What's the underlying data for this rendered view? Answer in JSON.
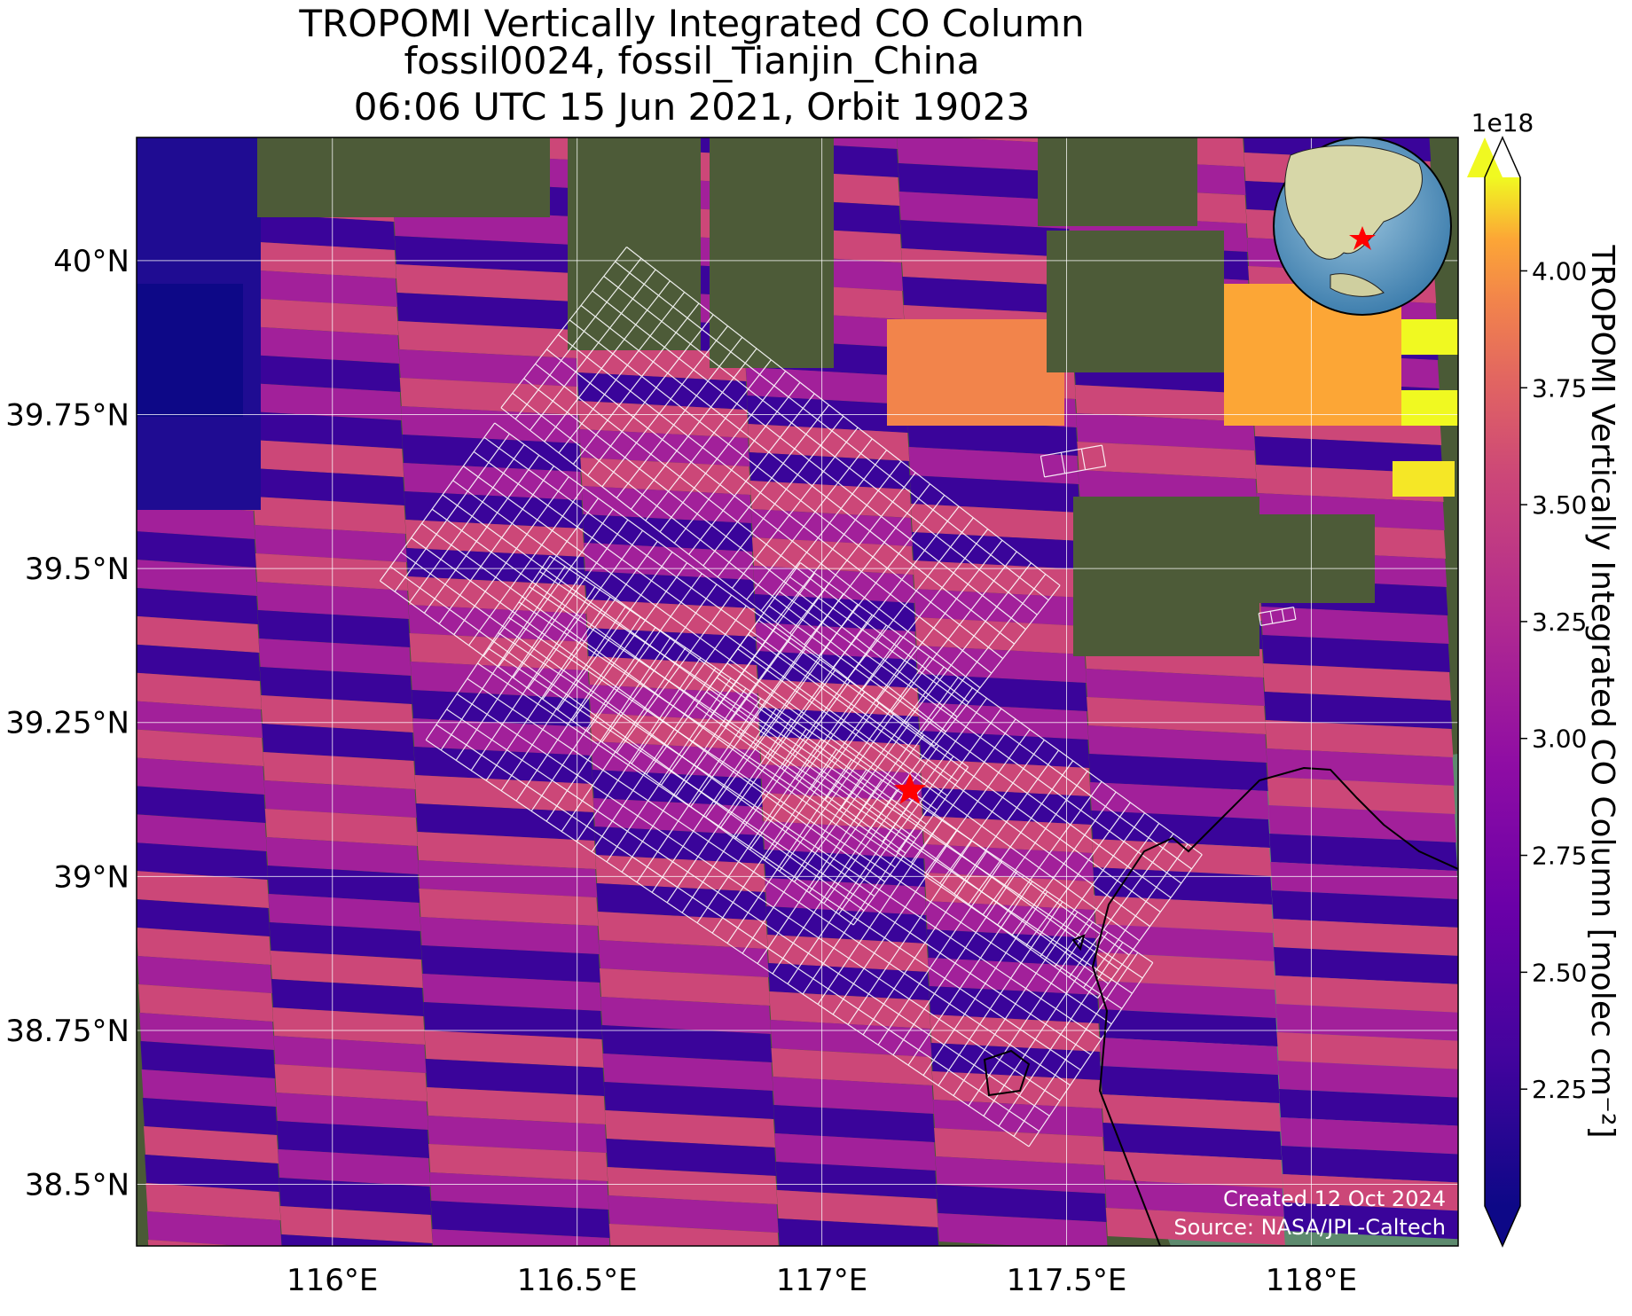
{
  "title": {
    "line1": "TROPOMI Vertically Integrated CO Column",
    "line2": "fossil0024, fossil_Tianjin_China",
    "line3": "06:06 UTC 15 Jun 2021, Orbit 19023"
  },
  "map": {
    "lon_range": [
      115.6,
      118.3
    ],
    "lat_range": [
      38.4,
      40.2
    ],
    "x_ticks": [
      {
        "value": 116.0,
        "label": "116°E"
      },
      {
        "value": 116.5,
        "label": "116.5°E"
      },
      {
        "value": 117.0,
        "label": "117°E"
      },
      {
        "value": 117.5,
        "label": "117.5°E"
      },
      {
        "value": 118.0,
        "label": "118°E"
      }
    ],
    "y_ticks": [
      {
        "value": 38.5,
        "label": "38.5°N"
      },
      {
        "value": 38.75,
        "label": "38.75°N"
      },
      {
        "value": 39.0,
        "label": "39°N"
      },
      {
        "value": 39.25,
        "label": "39.25°N"
      },
      {
        "value": 39.5,
        "label": "39.5°N"
      },
      {
        "value": 39.75,
        "label": "39.75°N"
      },
      {
        "value": 40.0,
        "label": "40°N"
      }
    ],
    "gridlines": true,
    "target": {
      "name": "fossil_Tianjin_China",
      "lon": 117.18,
      "lat": 39.14,
      "marker_color": "#ff0000"
    },
    "inset": "globe-with-target-star"
  },
  "colorbar": {
    "label": "TROPOMI Vertically Integrated CO Column [molec cm⁻²]",
    "exponent": "1e18",
    "range": [
      2.0,
      4.2
    ],
    "colormap": "plasma",
    "ticks": [
      "2.25",
      "2.50",
      "2.75",
      "3.00",
      "3.25",
      "3.50",
      "3.75",
      "4.00"
    ],
    "extend": "both"
  },
  "credits": {
    "created": "Created 12 Oct 2024",
    "source": "Source: NASA/JPL-Caltech"
  }
}
